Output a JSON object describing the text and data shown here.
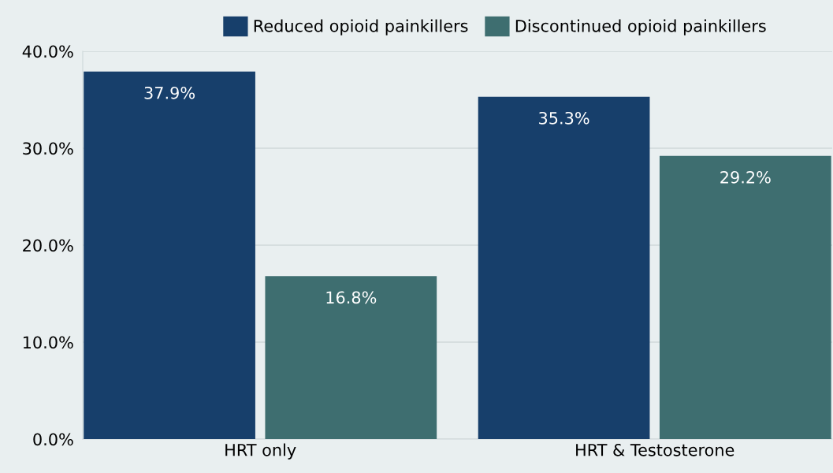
{
  "chart_data": {
    "type": "bar",
    "categories": [
      "HRT only",
      "HRT & Testosterone"
    ],
    "series": [
      {
        "name": "Reduced opioid painkillers",
        "color": "#173f6b",
        "values": [
          37.9,
          35.3
        ],
        "value_labels": [
          "37.9%",
          "35.3%"
        ]
      },
      {
        "name": "Discontinued opioid painkillers",
        "color": "#3e6e70",
        "values": [
          16.8,
          29.2
        ],
        "value_labels": [
          "16.8%",
          "29.2%"
        ]
      }
    ],
    "ylim": [
      0,
      40
    ],
    "yticks": [
      {
        "value": 0,
        "label": "0.0%"
      },
      {
        "value": 10,
        "label": "10.0%"
      },
      {
        "value": 20,
        "label": "20.0%"
      },
      {
        "value": 30,
        "label": "30.0%"
      },
      {
        "value": 40,
        "label": "40.0%"
      }
    ],
    "grid": "y",
    "legend": "top"
  }
}
